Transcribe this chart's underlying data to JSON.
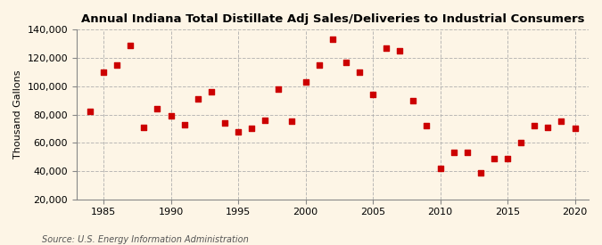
{
  "title": "Annual Indiana Total Distillate Adj Sales/Deliveries to Industrial Consumers",
  "ylabel": "Thousand Gallons",
  "source": "Source: U.S. Energy Information Administration",
  "background_color": "#fdf5e6",
  "grid_color": "#aaaaaa",
  "marker_color": "#cc0000",
  "years": [
    1984,
    1985,
    1986,
    1987,
    1988,
    1989,
    1990,
    1991,
    1992,
    1993,
    1994,
    1995,
    1996,
    1997,
    1998,
    1999,
    2000,
    2001,
    2002,
    2003,
    2004,
    2005,
    2006,
    2007,
    2008,
    2009,
    2010,
    2011,
    2012,
    2013,
    2014,
    2015,
    2016,
    2017,
    2018,
    2019,
    2020
  ],
  "values": [
    82000,
    110000,
    115000,
    129000,
    71000,
    84000,
    79000,
    73000,
    91000,
    96000,
    74000,
    68000,
    70000,
    76000,
    98000,
    75000,
    103000,
    115000,
    133000,
    117000,
    110000,
    94000,
    127000,
    125000,
    90000,
    72000,
    42000,
    53000,
    53000,
    39000,
    49000,
    49000,
    60000,
    72000,
    71000,
    75000,
    70000
  ],
  "ylim": [
    20000,
    140000
  ],
  "xlim": [
    1983,
    2021
  ],
  "yticks": [
    20000,
    40000,
    60000,
    80000,
    100000,
    120000,
    140000
  ],
  "xticks": [
    1985,
    1990,
    1995,
    2000,
    2005,
    2010,
    2015,
    2020
  ]
}
